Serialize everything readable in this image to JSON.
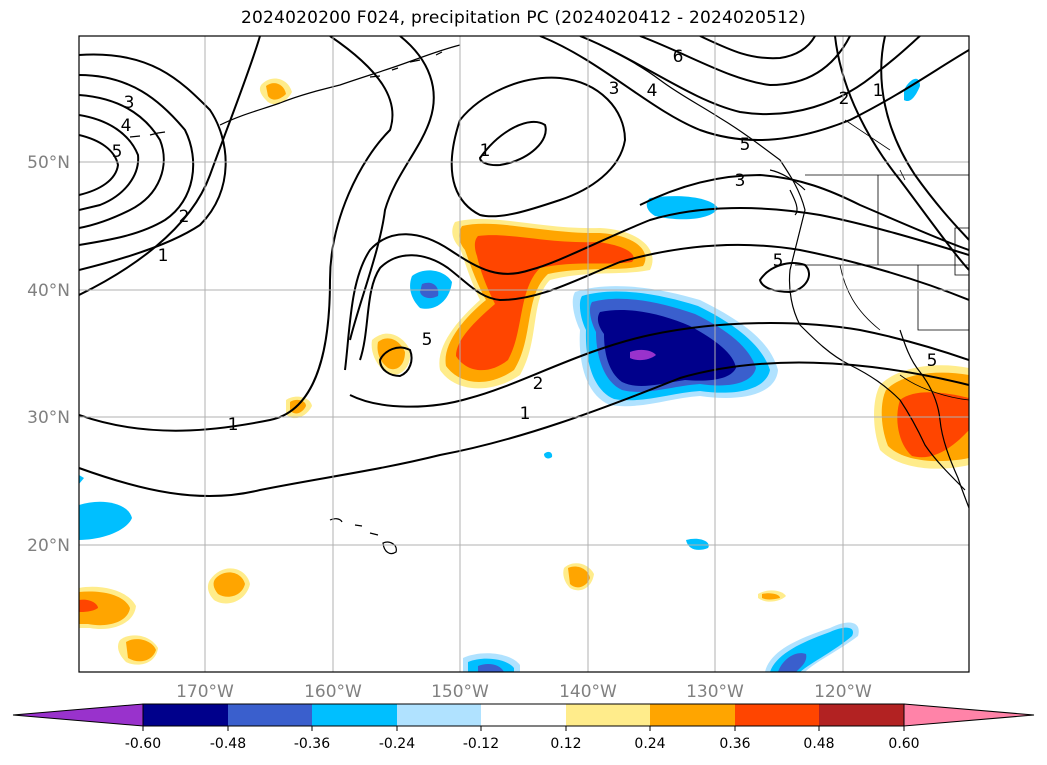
{
  "title": "2024020200 F024, precipitation PC (2024020412 - 2024020512)",
  "lat_labels": [
    "50°N",
    "40°N",
    "30°N",
    "20°N"
  ],
  "lon_labels": [
    "170°W",
    "160°W",
    "150°W",
    "140°W",
    "130°W",
    "120°W"
  ],
  "contour_labels": [
    "3",
    "4",
    "5",
    "2",
    "1",
    "1",
    "6",
    "3",
    "4",
    "3",
    "2",
    "1",
    "5",
    "5",
    "5",
    "2",
    "1",
    "1",
    "5"
  ],
  "colorbar": {
    "tick_labels": [
      "-0.60",
      "-0.48",
      "-0.36",
      "-0.24",
      "-0.12",
      "0.12",
      "0.24",
      "0.36",
      "0.48",
      "0.60"
    ],
    "colors": [
      "#9932cc",
      "#00008b",
      "#3a5fcd",
      "#00bfff",
      "#b0e2ff",
      "#ffffff",
      "#ffec8b",
      "#ffa500",
      "#ff4500",
      "#b22222",
      "#ff83a8"
    ]
  },
  "shading_colors": {
    "neg_light": "#b0e2ff",
    "neg_mid": "#00bfff",
    "neg_strong": "#3a5fcd",
    "neg_max": "#00008b",
    "neg_extreme": "#9932cc",
    "pos_light": "#ffec8b",
    "pos_mid": "#ffa500",
    "pos_strong": "#ff4500"
  }
}
